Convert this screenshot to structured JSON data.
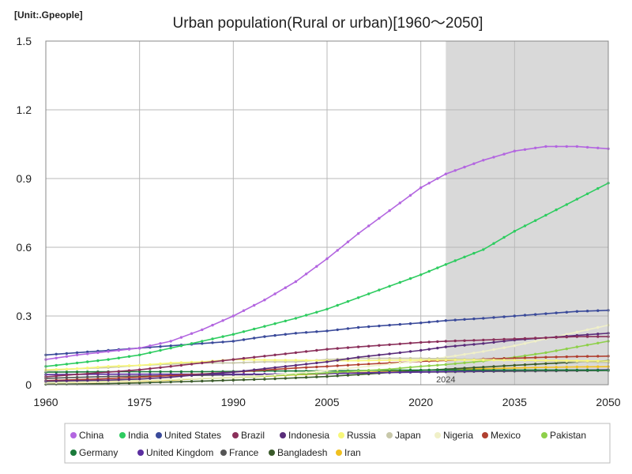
{
  "chart_data": {
    "type": "line",
    "title": "Urban population(Rural or urban)[1960～2050]",
    "unit_label": "[Unit:.Gpeople]",
    "xlim": [
      1960,
      2050
    ],
    "ylim": [
      0,
      1.5
    ],
    "x_ticks": [
      1960,
      1975,
      1990,
      2005,
      2020,
      2035,
      2050
    ],
    "y_ticks": [
      0,
      0.3,
      0.6,
      0.9,
      1.2,
      1.5
    ],
    "y_tick_labels": [
      "0",
      "0.3",
      "0.6",
      "0.9",
      "1.2",
      "1.5"
    ],
    "grid": true,
    "projection_start": 2024,
    "projection_label": "2024",
    "legend_position": "bottom",
    "series": [
      {
        "name": "China",
        "color": "#b366e0",
        "points": [
          [
            1960,
            0.11
          ],
          [
            1965,
            0.13
          ],
          [
            1970,
            0.145
          ],
          [
            1975,
            0.16
          ],
          [
            1980,
            0.19
          ],
          [
            1985,
            0.24
          ],
          [
            1990,
            0.3
          ],
          [
            1995,
            0.37
          ],
          [
            2000,
            0.45
          ],
          [
            2005,
            0.55
          ],
          [
            2010,
            0.66
          ],
          [
            2015,
            0.76
          ],
          [
            2020,
            0.86
          ],
          [
            2024,
            0.92
          ],
          [
            2030,
            0.98
          ],
          [
            2035,
            1.02
          ],
          [
            2040,
            1.04
          ],
          [
            2045,
            1.04
          ],
          [
            2050,
            1.03
          ]
        ]
      },
      {
        "name": "India",
        "color": "#2ecc60",
        "points": [
          [
            1960,
            0.08
          ],
          [
            1965,
            0.095
          ],
          [
            1970,
            0.11
          ],
          [
            1975,
            0.13
          ],
          [
            1980,
            0.16
          ],
          [
            1985,
            0.19
          ],
          [
            1990,
            0.22
          ],
          [
            1995,
            0.255
          ],
          [
            2000,
            0.29
          ],
          [
            2005,
            0.33
          ],
          [
            2010,
            0.38
          ],
          [
            2015,
            0.43
          ],
          [
            2020,
            0.48
          ],
          [
            2024,
            0.525
          ],
          [
            2030,
            0.59
          ],
          [
            2035,
            0.67
          ],
          [
            2040,
            0.74
          ],
          [
            2045,
            0.81
          ],
          [
            2050,
            0.88
          ]
        ]
      },
      {
        "name": "United States",
        "color": "#3a4a9a",
        "points": [
          [
            1960,
            0.13
          ],
          [
            1965,
            0.14
          ],
          [
            1970,
            0.15
          ],
          [
            1975,
            0.16
          ],
          [
            1980,
            0.17
          ],
          [
            1985,
            0.18
          ],
          [
            1990,
            0.19
          ],
          [
            1995,
            0.21
          ],
          [
            2000,
            0.225
          ],
          [
            2005,
            0.235
          ],
          [
            2010,
            0.25
          ],
          [
            2015,
            0.26
          ],
          [
            2020,
            0.27
          ],
          [
            2024,
            0.28
          ],
          [
            2030,
            0.29
          ],
          [
            2035,
            0.3
          ],
          [
            2040,
            0.31
          ],
          [
            2045,
            0.32
          ],
          [
            2050,
            0.325
          ]
        ]
      },
      {
        "name": "Brazil",
        "color": "#8a2f5a",
        "points": [
          [
            1960,
            0.035
          ],
          [
            1965,
            0.045
          ],
          [
            1970,
            0.055
          ],
          [
            1975,
            0.065
          ],
          [
            1980,
            0.08
          ],
          [
            1985,
            0.095
          ],
          [
            1990,
            0.11
          ],
          [
            1995,
            0.125
          ],
          [
            2000,
            0.14
          ],
          [
            2005,
            0.155
          ],
          [
            2010,
            0.165
          ],
          [
            2015,
            0.175
          ],
          [
            2020,
            0.185
          ],
          [
            2024,
            0.19
          ],
          [
            2030,
            0.195
          ],
          [
            2035,
            0.2
          ],
          [
            2040,
            0.205
          ],
          [
            2045,
            0.21
          ],
          [
            2050,
            0.21
          ]
        ]
      },
      {
        "name": "Indonesia",
        "color": "#5a2d7a",
        "points": [
          [
            1960,
            0.015
          ],
          [
            1965,
            0.018
          ],
          [
            1970,
            0.02
          ],
          [
            1975,
            0.025
          ],
          [
            1980,
            0.033
          ],
          [
            1985,
            0.045
          ],
          [
            1990,
            0.055
          ],
          [
            1995,
            0.07
          ],
          [
            2000,
            0.085
          ],
          [
            2005,
            0.1
          ],
          [
            2010,
            0.12
          ],
          [
            2015,
            0.135
          ],
          [
            2020,
            0.15
          ],
          [
            2024,
            0.165
          ],
          [
            2030,
            0.18
          ],
          [
            2035,
            0.195
          ],
          [
            2040,
            0.205
          ],
          [
            2045,
            0.215
          ],
          [
            2050,
            0.225
          ]
        ]
      },
      {
        "name": "Russia",
        "color": "#f7f77a",
        "points": [
          [
            1960,
            0.065
          ],
          [
            1965,
            0.07
          ],
          [
            1970,
            0.08
          ],
          [
            1975,
            0.085
          ],
          [
            1980,
            0.095
          ],
          [
            1985,
            0.1
          ],
          [
            1990,
            0.11
          ],
          [
            1995,
            0.108
          ],
          [
            2000,
            0.107
          ],
          [
            2005,
            0.105
          ],
          [
            2010,
            0.105
          ],
          [
            2015,
            0.107
          ],
          [
            2020,
            0.108
          ],
          [
            2024,
            0.108
          ],
          [
            2030,
            0.108
          ],
          [
            2035,
            0.107
          ],
          [
            2040,
            0.106
          ],
          [
            2045,
            0.105
          ],
          [
            2050,
            0.103
          ]
        ]
      },
      {
        "name": "Japan",
        "color": "#c8c8aa",
        "points": [
          [
            1960,
            0.06
          ],
          [
            1965,
            0.07
          ],
          [
            1970,
            0.075
          ],
          [
            1975,
            0.085
          ],
          [
            1980,
            0.09
          ],
          [
            1985,
            0.095
          ],
          [
            1990,
            0.095
          ],
          [
            1995,
            0.1
          ],
          [
            2000,
            0.1
          ],
          [
            2005,
            0.11
          ],
          [
            2010,
            0.115
          ],
          [
            2015,
            0.115
          ],
          [
            2020,
            0.115
          ],
          [
            2024,
            0.113
          ],
          [
            2030,
            0.11
          ],
          [
            2035,
            0.107
          ],
          [
            2040,
            0.104
          ],
          [
            2045,
            0.1
          ],
          [
            2050,
            0.097
          ]
        ]
      },
      {
        "name": "Nigeria",
        "color": "#f0f0c8",
        "points": [
          [
            1960,
            0.008
          ],
          [
            1965,
            0.011
          ],
          [
            1970,
            0.014
          ],
          [
            1975,
            0.018
          ],
          [
            1980,
            0.023
          ],
          [
            1985,
            0.028
          ],
          [
            1990,
            0.033
          ],
          [
            1995,
            0.04
          ],
          [
            2000,
            0.05
          ],
          [
            2005,
            0.062
          ],
          [
            2010,
            0.076
          ],
          [
            2015,
            0.09
          ],
          [
            2020,
            0.105
          ],
          [
            2024,
            0.12
          ],
          [
            2030,
            0.145
          ],
          [
            2035,
            0.17
          ],
          [
            2040,
            0.2
          ],
          [
            2045,
            0.23
          ],
          [
            2050,
            0.26
          ]
        ]
      },
      {
        "name": "Mexico",
        "color": "#b04030",
        "points": [
          [
            1960,
            0.018
          ],
          [
            1965,
            0.022
          ],
          [
            1970,
            0.027
          ],
          [
            1975,
            0.033
          ],
          [
            1980,
            0.04
          ],
          [
            1985,
            0.047
          ],
          [
            1990,
            0.055
          ],
          [
            1995,
            0.064
          ],
          [
            2000,
            0.073
          ],
          [
            2005,
            0.08
          ],
          [
            2010,
            0.088
          ],
          [
            2015,
            0.095
          ],
          [
            2020,
            0.102
          ],
          [
            2024,
            0.106
          ],
          [
            2030,
            0.112
          ],
          [
            2035,
            0.116
          ],
          [
            2040,
            0.12
          ],
          [
            2045,
            0.123
          ],
          [
            2050,
            0.125
          ]
        ]
      },
      {
        "name": "Pakistan",
        "color": "#8ed04a",
        "points": [
          [
            1960,
            0.01
          ],
          [
            1965,
            0.012
          ],
          [
            1970,
            0.015
          ],
          [
            1975,
            0.018
          ],
          [
            1980,
            0.022
          ],
          [
            1985,
            0.027
          ],
          [
            1990,
            0.032
          ],
          [
            1995,
            0.038
          ],
          [
            2000,
            0.045
          ],
          [
            2005,
            0.052
          ],
          [
            2010,
            0.06
          ],
          [
            2015,
            0.068
          ],
          [
            2020,
            0.08
          ],
          [
            2024,
            0.088
          ],
          [
            2030,
            0.103
          ],
          [
            2035,
            0.12
          ],
          [
            2040,
            0.14
          ],
          [
            2045,
            0.165
          ],
          [
            2050,
            0.19
          ]
        ]
      },
      {
        "name": "Germany",
        "color": "#1a7a3a",
        "points": [
          [
            1960,
            0.055
          ],
          [
            1965,
            0.056
          ],
          [
            1970,
            0.057
          ],
          [
            1975,
            0.057
          ],
          [
            1980,
            0.057
          ],
          [
            1985,
            0.057
          ],
          [
            1990,
            0.058
          ],
          [
            1995,
            0.06
          ],
          [
            2000,
            0.06
          ],
          [
            2005,
            0.06
          ],
          [
            2010,
            0.062
          ],
          [
            2015,
            0.063
          ],
          [
            2020,
            0.064
          ],
          [
            2024,
            0.064
          ],
          [
            2030,
            0.064
          ],
          [
            2035,
            0.064
          ],
          [
            2040,
            0.064
          ],
          [
            2045,
            0.064
          ],
          [
            2050,
            0.063
          ]
        ]
      },
      {
        "name": "United Kingdom",
        "color": "#5b2ea0",
        "points": [
          [
            1960,
            0.044
          ],
          [
            1965,
            0.045
          ],
          [
            1970,
            0.046
          ],
          [
            1975,
            0.046
          ],
          [
            1980,
            0.046
          ],
          [
            1985,
            0.046
          ],
          [
            1990,
            0.046
          ],
          [
            1995,
            0.046
          ],
          [
            2000,
            0.047
          ],
          [
            2005,
            0.049
          ],
          [
            2010,
            0.051
          ],
          [
            2015,
            0.054
          ],
          [
            2020,
            0.056
          ],
          [
            2024,
            0.058
          ],
          [
            2030,
            0.06
          ],
          [
            2035,
            0.062
          ],
          [
            2040,
            0.063
          ],
          [
            2045,
            0.064
          ],
          [
            2050,
            0.065
          ]
        ]
      },
      {
        "name": "France",
        "color": "#555555",
        "points": [
          [
            1960,
            0.028
          ],
          [
            1965,
            0.032
          ],
          [
            1970,
            0.036
          ],
          [
            1975,
            0.038
          ],
          [
            1980,
            0.04
          ],
          [
            1985,
            0.041
          ],
          [
            1990,
            0.043
          ],
          [
            1995,
            0.044
          ],
          [
            2000,
            0.046
          ],
          [
            2005,
            0.049
          ],
          [
            2010,
            0.051
          ],
          [
            2015,
            0.053
          ],
          [
            2020,
            0.055
          ],
          [
            2024,
            0.056
          ],
          [
            2030,
            0.058
          ],
          [
            2035,
            0.059
          ],
          [
            2040,
            0.06
          ],
          [
            2045,
            0.061
          ],
          [
            2050,
            0.062
          ]
        ]
      },
      {
        "name": "Bangladesh",
        "color": "#3a5a2a",
        "points": [
          [
            1960,
            0.002
          ],
          [
            1965,
            0.003
          ],
          [
            1970,
            0.005
          ],
          [
            1975,
            0.008
          ],
          [
            1980,
            0.012
          ],
          [
            1985,
            0.016
          ],
          [
            1990,
            0.02
          ],
          [
            1995,
            0.024
          ],
          [
            2000,
            0.03
          ],
          [
            2005,
            0.036
          ],
          [
            2010,
            0.044
          ],
          [
            2015,
            0.053
          ],
          [
            2020,
            0.062
          ],
          [
            2024,
            0.068
          ],
          [
            2030,
            0.077
          ],
          [
            2035,
            0.085
          ],
          [
            2040,
            0.092
          ],
          [
            2045,
            0.099
          ],
          [
            2050,
            0.105
          ]
        ]
      },
      {
        "name": "Iran",
        "color": "#f0c020",
        "points": [
          [
            1960,
            0.008
          ],
          [
            1965,
            0.01
          ],
          [
            1970,
            0.013
          ],
          [
            1975,
            0.016
          ],
          [
            1980,
            0.02
          ],
          [
            1985,
            0.027
          ],
          [
            1990,
            0.032
          ],
          [
            1995,
            0.037
          ],
          [
            2000,
            0.043
          ],
          [
            2005,
            0.048
          ],
          [
            2010,
            0.053
          ],
          [
            2015,
            0.058
          ],
          [
            2020,
            0.063
          ],
          [
            2024,
            0.066
          ],
          [
            2030,
            0.07
          ],
          [
            2035,
            0.073
          ],
          [
            2040,
            0.076
          ],
          [
            2045,
            0.078
          ],
          [
            2050,
            0.079
          ]
        ]
      }
    ]
  }
}
